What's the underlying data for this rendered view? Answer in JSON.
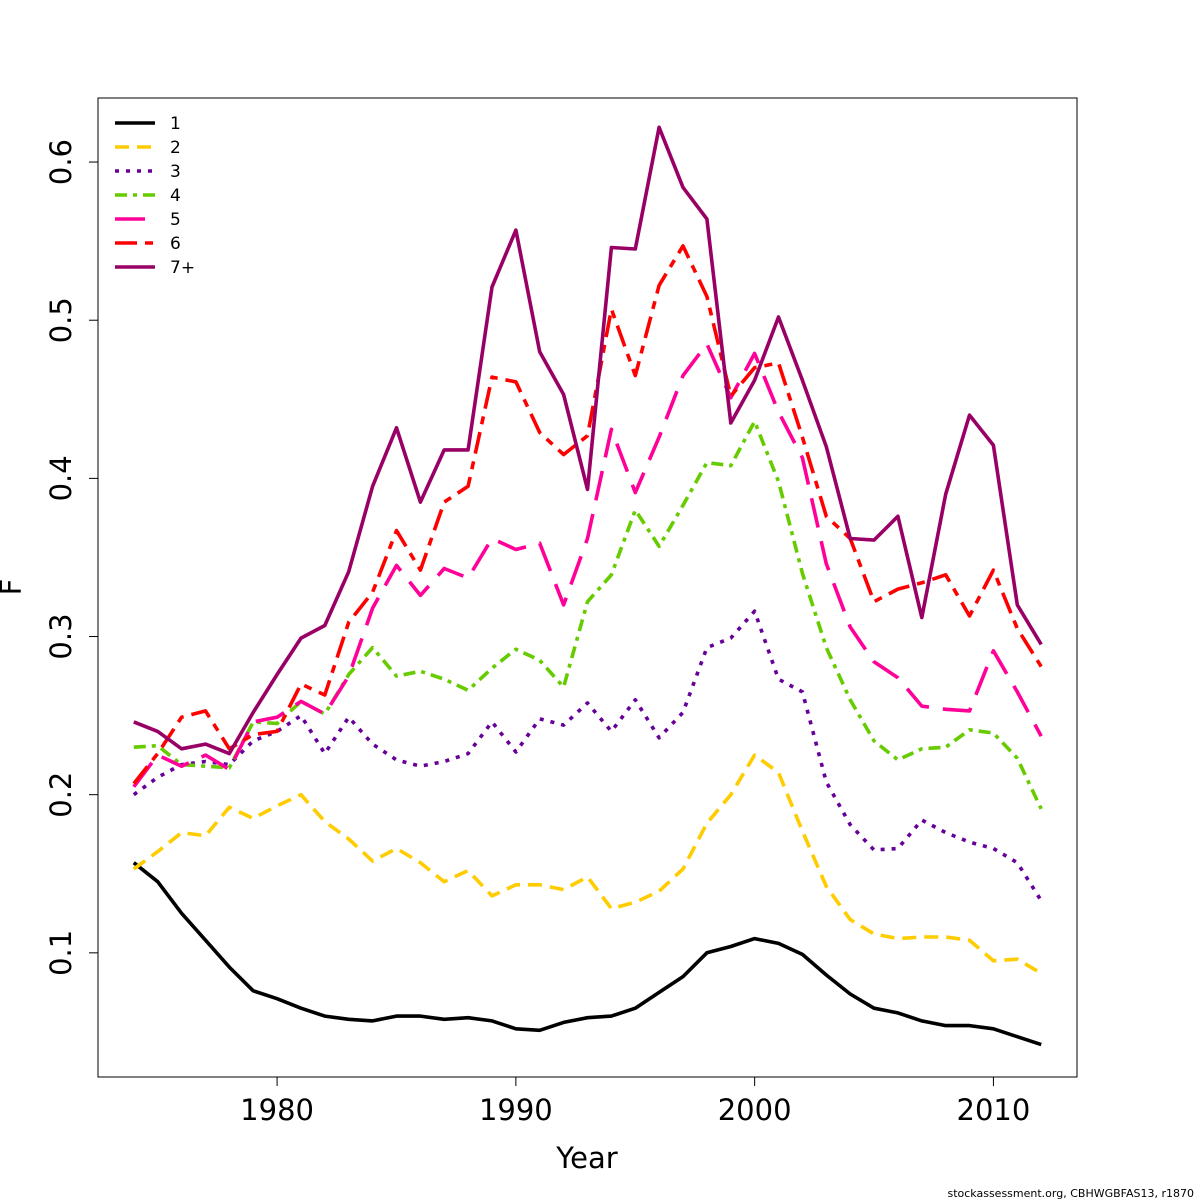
{
  "chart_data": {
    "type": "line",
    "title": "",
    "xlabel": "Year",
    "ylabel": "F",
    "xlim": [
      1972.5,
      2013.5
    ],
    "ylim": [
      0.0215,
      0.6405
    ],
    "x_ticks": [
      1980,
      1990,
      2000,
      2010
    ],
    "x_tick_labels": [
      "1980",
      "1990",
      "2000",
      "2010"
    ],
    "y_ticks": [
      0.1,
      0.2,
      0.3,
      0.4,
      0.5,
      0.6
    ],
    "y_tick_labels": [
      "0.1",
      "0.2",
      "0.3",
      "0.4",
      "0.5",
      "0.6"
    ],
    "grid": false,
    "legend_position": "top-left",
    "x": [
      1974,
      1975,
      1976,
      1977,
      1978,
      1979,
      1980,
      1981,
      1982,
      1983,
      1984,
      1985,
      1986,
      1987,
      1988,
      1989,
      1990,
      1991,
      1992,
      1993,
      1994,
      1995,
      1996,
      1997,
      1998,
      1999,
      2000,
      2001,
      2002,
      2003,
      2004,
      2005,
      2006,
      2007,
      2008,
      2009,
      2010,
      2011,
      2012
    ],
    "series": [
      {
        "name": "1",
        "color": "#000000",
        "dash": "",
        "values": [
          0.157,
          0.145,
          0.125,
          0.108,
          0.091,
          0.076,
          0.071,
          0.065,
          0.06,
          0.058,
          0.057,
          0.06,
          0.06,
          0.058,
          0.059,
          0.057,
          0.052,
          0.051,
          0.056,
          0.059,
          0.06,
          0.065,
          0.075,
          0.085,
          0.1,
          0.104,
          0.109,
          0.106,
          0.099,
          0.086,
          0.074,
          0.065,
          0.062,
          0.057,
          0.054,
          0.054,
          0.052,
          0.047,
          0.042
        ]
      },
      {
        "name": "2",
        "color": "#FFCC00",
        "dash": "14 8",
        "values": [
          0.153,
          0.164,
          0.176,
          0.174,
          0.192,
          0.185,
          0.193,
          0.2,
          0.183,
          0.172,
          0.158,
          0.166,
          0.157,
          0.145,
          0.152,
          0.136,
          0.143,
          0.143,
          0.14,
          0.148,
          0.128,
          0.132,
          0.139,
          0.153,
          0.182,
          0.2,
          0.225,
          0.214,
          0.177,
          0.142,
          0.121,
          0.112,
          0.109,
          0.11,
          0.11,
          0.108,
          0.095,
          0.096,
          0.087
        ]
      },
      {
        "name": "3",
        "color": "#660099",
        "dash": "4 7",
        "values": [
          0.2,
          0.211,
          0.219,
          0.221,
          0.219,
          0.234,
          0.24,
          0.25,
          0.226,
          0.249,
          0.232,
          0.222,
          0.218,
          0.221,
          0.226,
          0.246,
          0.227,
          0.248,
          0.244,
          0.258,
          0.24,
          0.26,
          0.236,
          0.252,
          0.293,
          0.299,
          0.316,
          0.273,
          0.265,
          0.208,
          0.181,
          0.165,
          0.166,
          0.184,
          0.176,
          0.17,
          0.166,
          0.157,
          0.133
        ]
      },
      {
        "name": "4",
        "color": "#66CC00",
        "dash": "12 6 4 6",
        "values": [
          0.23,
          0.231,
          0.219,
          0.218,
          0.217,
          0.246,
          0.245,
          0.259,
          0.251,
          0.276,
          0.293,
          0.275,
          0.278,
          0.273,
          0.266,
          0.28,
          0.292,
          0.285,
          0.268,
          0.322,
          0.339,
          0.38,
          0.357,
          0.383,
          0.41,
          0.408,
          0.436,
          0.398,
          0.34,
          0.293,
          0.26,
          0.234,
          0.222,
          0.229,
          0.23,
          0.241,
          0.239,
          0.223,
          0.191
        ]
      },
      {
        "name": "5",
        "color": "#FF0099",
        "dash": "30 14",
        "values": [
          0.205,
          0.225,
          0.218,
          0.225,
          0.216,
          0.246,
          0.249,
          0.259,
          0.251,
          0.275,
          0.318,
          0.345,
          0.326,
          0.343,
          0.337,
          0.362,
          0.355,
          0.359,
          0.32,
          0.362,
          0.431,
          0.391,
          0.426,
          0.465,
          0.485,
          0.451,
          0.479,
          0.442,
          0.413,
          0.346,
          0.306,
          0.284,
          0.274,
          0.256,
          0.254,
          0.253,
          0.291,
          0.265,
          0.237
        ]
      },
      {
        "name": "6",
        "color": "#FF0000",
        "dash": "22 8 8 8",
        "values": [
          0.207,
          0.226,
          0.249,
          0.253,
          0.229,
          0.238,
          0.24,
          0.27,
          0.263,
          0.309,
          0.328,
          0.367,
          0.342,
          0.385,
          0.395,
          0.464,
          0.461,
          0.429,
          0.415,
          0.427,
          0.507,
          0.465,
          0.522,
          0.547,
          0.515,
          0.452,
          0.47,
          0.473,
          0.426,
          0.376,
          0.362,
          0.322,
          0.33,
          0.334,
          0.339,
          0.313,
          0.342,
          0.305,
          0.281
        ]
      },
      {
        "name": "7+",
        "color": "#990066",
        "dash": "",
        "values": [
          0.246,
          0.24,
          0.229,
          0.232,
          0.226,
          0.252,
          0.276,
          0.299,
          0.307,
          0.341,
          0.395,
          0.432,
          0.385,
          0.418,
          0.418,
          0.521,
          0.557,
          0.48,
          0.453,
          0.393,
          0.546,
          0.545,
          0.622,
          0.584,
          0.564,
          0.435,
          0.462,
          0.502,
          0.462,
          0.42,
          0.362,
          0.361,
          0.376,
          0.312,
          0.39,
          0.44,
          0.421,
          0.32,
          0.295
        ]
      }
    ],
    "annotation": "stockassessment.org, CBHWGBFAS13, r1870"
  }
}
